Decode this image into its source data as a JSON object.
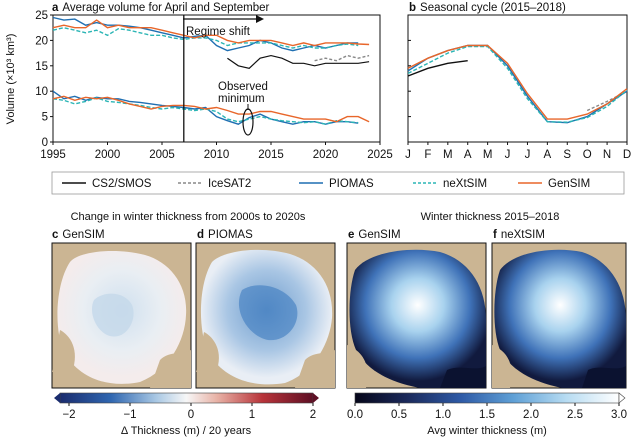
{
  "panels": {
    "a": {
      "letter": "a",
      "title": "Average volume for April and September"
    },
    "b": {
      "letter": "b",
      "title": "Seasonal cycle (2015–2018)"
    },
    "c": {
      "letter": "c",
      "title": "GenSIM"
    },
    "d": {
      "letter": "d",
      "title": "PIOMAS"
    },
    "e": {
      "letter": "e",
      "title": "GenSIM"
    },
    "f": {
      "letter": "f",
      "title": "neXtSIM"
    }
  },
  "annotations": {
    "regime_shift": "Regime shift",
    "observed_minimum_line1": "Observed",
    "observed_minimum_line2": "minimum"
  },
  "ylabel": "Volume (×10³ km³)",
  "section_titles": {
    "change": "Change in winter thickness from 2000s to 2020s",
    "winter": "Winter thickness 2015–2018"
  },
  "legend": [
    {
      "name": "CS2/SMOS",
      "color": "#111111",
      "style": "solid"
    },
    {
      "name": "IceSAT2",
      "color": "#888888",
      "style": "dashed"
    },
    {
      "name": "PIOMAS",
      "color": "#1f6fb2",
      "style": "solid"
    },
    {
      "name": "neXtSIM",
      "color": "#2bb5b5",
      "style": "dashed"
    },
    {
      "name": "GenSIM",
      "color": "#e8662a",
      "style": "solid"
    }
  ],
  "colorbars": [
    {
      "label": "Δ Thickness (m) / 20 years",
      "ticks": [
        "−2",
        "−1",
        "0",
        "1",
        "2"
      ],
      "range": [
        -2,
        2
      ],
      "colormap": "diverging blue-white-red"
    },
    {
      "label": "Avg winter thickness (m)",
      "ticks": [
        "0.0",
        "0.5",
        "1.0",
        "1.5",
        "2.0",
        "2.5",
        "3.0"
      ],
      "range": [
        0,
        3
      ],
      "colormap": "dark blue to white"
    }
  ],
  "chart_data": [
    {
      "type": "line",
      "panel": "a",
      "title": "Average volume for April and September",
      "ylabel": "Volume (×10³ km³)",
      "xlim": [
        1995,
        2025
      ],
      "ylim": [
        0,
        25
      ],
      "xticks": [
        "1995",
        "2000",
        "2005",
        "2010",
        "2015",
        "2020",
        "2025"
      ],
      "yticks": [
        "0",
        "5",
        "10",
        "15",
        "20",
        "25"
      ],
      "regime_shift_year": 2007,
      "series": [
        {
          "name": "PIOMAS",
          "color": "#1f6fb2",
          "dash": "",
          "april": {
            "x": [
              1995,
              1996,
              1997,
              1998,
              1999,
              2000,
              2001,
              2002,
              2003,
              2004,
              2005,
              2006,
              2007,
              2008,
              2009,
              2010,
              2011,
              2012,
              2013,
              2014,
              2015,
              2016,
              2017,
              2018,
              2019,
              2020,
              2021,
              2022,
              2023
            ],
            "y": [
              24.5,
              24,
              24.2,
              23,
              23.5,
              23,
              23,
              22.8,
              22.5,
              22,
              21.5,
              21,
              20.5,
              20.8,
              21,
              19,
              18,
              18.5,
              19,
              20,
              19.5,
              18.5,
              18,
              18.5,
              19,
              18.5,
              19,
              19.5,
              19.5
            ]
          },
          "september": {
            "x": [
              1995,
              1996,
              1997,
              1998,
              1999,
              2000,
              2001,
              2002,
              2003,
              2004,
              2005,
              2006,
              2007,
              2008,
              2009,
              2010,
              2011,
              2012,
              2013,
              2014,
              2015,
              2016,
              2017,
              2018,
              2019,
              2020,
              2021,
              2022,
              2023
            ],
            "y": [
              10,
              8.5,
              9,
              8.2,
              8.8,
              8.5,
              8.5,
              8,
              7.8,
              7.5,
              7.2,
              7,
              6.8,
              6.5,
              6.8,
              5,
              4.2,
              3.5,
              4.8,
              5.5,
              4.5,
              4,
              3.5,
              4,
              4,
              3.5,
              4,
              4,
              3.7
            ]
          }
        },
        {
          "name": "neXtSIM",
          "color": "#2bb5b5",
          "dash": "4 2",
          "april": {
            "x": [
              1995,
              1996,
              1997,
              1998,
              1999,
              2000,
              2001,
              2002,
              2003,
              2004,
              2005,
              2006,
              2007,
              2008,
              2009,
              2010,
              2011,
              2012,
              2013,
              2014,
              2015,
              2016,
              2017,
              2018,
              2019,
              2020,
              2021,
              2022,
              2023
            ],
            "y": [
              22,
              22.5,
              22,
              21.5,
              22,
              21,
              22.3,
              22,
              21.5,
              21,
              21,
              20.5,
              20.2,
              20.5,
              20.5,
              20,
              19,
              19.5,
              19.5,
              19.5,
              19.5,
              19,
              18.5,
              19,
              18.5,
              18.5,
              19,
              19.3,
              19
            ]
          },
          "september": {
            "x": [
              1995,
              1996,
              1997,
              1998,
              1999,
              2000,
              2001,
              2002,
              2003,
              2004,
              2005,
              2006,
              2007,
              2008,
              2009,
              2010,
              2011,
              2012,
              2013,
              2014,
              2015,
              2016,
              2017,
              2018,
              2019,
              2020,
              2021,
              2022,
              2023
            ],
            "y": [
              8.5,
              8.2,
              7.5,
              8,
              8.7,
              8,
              7.8,
              7.5,
              7.2,
              6.8,
              6.5,
              6.8,
              6.5,
              6.2,
              6.5,
              6,
              4.5,
              4,
              4.5,
              5,
              4.5,
              4.2,
              4,
              3.8,
              4,
              3.5,
              4.2,
              4,
              3.8
            ]
          }
        },
        {
          "name": "GenSIM",
          "color": "#e8662a",
          "dash": "",
          "april": {
            "x": [
              1995,
              1996,
              1997,
              1998,
              1999,
              2000,
              2001,
              2002,
              2003,
              2004,
              2005,
              2006,
              2007,
              2008,
              2009,
              2010,
              2011,
              2012,
              2013,
              2014,
              2015,
              2016,
              2017,
              2018,
              2019,
              2020,
              2021,
              2022,
              2023,
              2024
            ],
            "y": [
              22.5,
              23,
              22.5,
              22.5,
              24,
              22.5,
              23,
              22.5,
              22.5,
              22.5,
              22,
              21.5,
              21,
              20.5,
              21,
              21,
              20,
              19.5,
              20,
              20,
              20,
              19.5,
              19,
              19.5,
              19,
              19.5,
              19.5,
              19.5,
              19.3,
              19.2
            ]
          },
          "september": {
            "x": [
              1995,
              1996,
              1997,
              1998,
              1999,
              2000,
              2001,
              2002,
              2003,
              2004,
              2005,
              2006,
              2007,
              2008,
              2009,
              2010,
              2011,
              2012,
              2013,
              2014,
              2015,
              2016,
              2017,
              2018,
              2019,
              2020,
              2021,
              2022,
              2023,
              2024
            ],
            "y": [
              8.5,
              9,
              8.2,
              8.8,
              8.5,
              8.8,
              8.2,
              7.5,
              7,
              6.5,
              7,
              7.2,
              7.2,
              7,
              6.5,
              6.8,
              6.2,
              5.5,
              5.5,
              6,
              6,
              5.5,
              5,
              4.5,
              4.5,
              4.5,
              4,
              5,
              5,
              4
            ]
          }
        },
        {
          "name": "CS2/SMOS",
          "color": "#111111",
          "dash": "",
          "april": {
            "x": [
              2011,
              2012,
              2013,
              2014,
              2015,
              2016,
              2017,
              2018,
              2019,
              2020,
              2021,
              2022,
              2023,
              2024
            ],
            "y": [
              16.5,
              15,
              14.5,
              16.5,
              17,
              16.5,
              15.5,
              15.5,
              15,
              15.5,
              15.5,
              15.5,
              15.5,
              15.8
            ]
          }
        },
        {
          "name": "IceSAT2",
          "color": "#888888",
          "dash": "3 2",
          "april": {
            "x": [
              2019,
              2020,
              2021,
              2022,
              2023,
              2024
            ],
            "y": [
              16,
              16.5,
              16,
              17,
              16.5,
              17
            ]
          }
        }
      ],
      "annotations": [
        "Regime shift",
        "Observed minimum"
      ]
    },
    {
      "type": "line",
      "panel": "b",
      "title": "Seasonal cycle (2015–2018)",
      "categories": [
        "J",
        "F",
        "M",
        "A",
        "M",
        "J",
        "J",
        "A",
        "S",
        "O",
        "N",
        "D"
      ],
      "ylim": [
        0,
        25
      ],
      "series": [
        {
          "name": "CS2/SMOS",
          "color": "#111111",
          "dash": "",
          "x": [
            1,
            2,
            3,
            4
          ],
          "y": [
            13,
            14.5,
            15.5,
            16
          ]
        },
        {
          "name": "IceSAT2",
          "color": "#888888",
          "dash": "3 2",
          "x": [
            10,
            11,
            12
          ],
          "y": [
            6.2,
            8,
            10
          ]
        },
        {
          "name": "PIOMAS",
          "color": "#1f6fb2",
          "dash": "",
          "x": [
            1,
            2,
            3,
            4,
            5,
            6,
            7,
            8,
            9,
            10,
            11,
            12
          ],
          "y": [
            14,
            16.5,
            18,
            19,
            19,
            15,
            9,
            4,
            3.8,
            5,
            7.5,
            10
          ]
        },
        {
          "name": "neXtSIM",
          "color": "#2bb5b5",
          "dash": "4 2",
          "x": [
            1,
            2,
            3,
            4,
            5,
            6,
            7,
            8,
            9,
            10,
            11,
            12
          ],
          "y": [
            13.5,
            15.5,
            17.5,
            18.8,
            18.8,
            14.5,
            8.5,
            4,
            3.9,
            4.8,
            7,
            10.2
          ]
        },
        {
          "name": "GenSIM",
          "color": "#e8662a",
          "dash": "",
          "x": [
            1,
            2,
            3,
            4,
            5,
            6,
            7,
            8,
            9,
            10,
            11,
            12
          ],
          "y": [
            14.5,
            16.5,
            18,
            19,
            19,
            15.5,
            9.5,
            4.5,
            4.5,
            5.5,
            7.5,
            10.5
          ]
        }
      ]
    },
    {
      "type": "heatmap",
      "panel": "c",
      "title": "GenSIM",
      "colorbar": "Δ Thickness (m) / 20 years"
    },
    {
      "type": "heatmap",
      "panel": "d",
      "title": "PIOMAS",
      "colorbar": "Δ Thickness (m) / 20 years"
    },
    {
      "type": "heatmap",
      "panel": "e",
      "title": "GenSIM",
      "colorbar": "Avg winter thickness (m)"
    },
    {
      "type": "heatmap",
      "panel": "f",
      "title": "neXtSIM",
      "colorbar": "Avg winter thickness (m)"
    }
  ]
}
